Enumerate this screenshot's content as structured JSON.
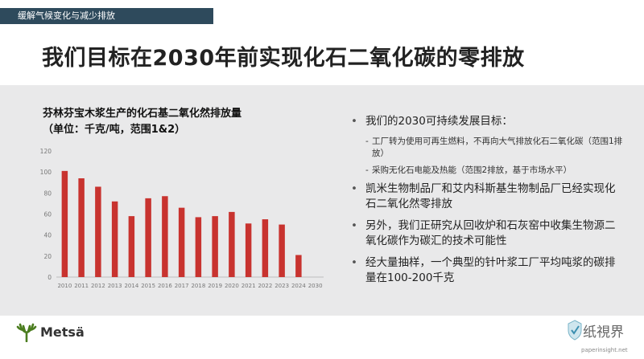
{
  "header": {
    "section_label": "缓解气候变化与减少排放"
  },
  "page_title": "我们目标在2030年前实现化石二氧化碳的零排放",
  "chart_data": {
    "type": "bar",
    "title_line1": "芬林芬宝木浆生产的化石基二氧化然排放量",
    "title_line2": "（单位：千克/吨，范围1&2）",
    "categories": [
      "2010",
      "2011",
      "2012",
      "2013",
      "2014",
      "2015",
      "2016",
      "2017",
      "2018",
      "2019",
      "2020",
      "2021",
      "2022",
      "2023",
      "2024",
      "2030"
    ],
    "values": [
      101,
      94,
      86,
      72,
      58,
      75,
      77,
      66,
      57,
      58,
      62,
      51,
      55,
      50,
      21,
      null
    ],
    "ylim": [
      0,
      120
    ],
    "yticks": [
      "0",
      "20",
      "40",
      "60",
      "80",
      "100",
      "120"
    ],
    "bar_color": "#c8332f",
    "grid": false
  },
  "bullets": [
    {
      "text": "我们的2030可持续发展目标：",
      "subs": [
        "工厂转为使用可再生燃料，不再向大气排放化石二氧化碳（范围1排放）",
        "采购无化石电能及热能（范围2排放，基于市场水平）"
      ]
    },
    {
      "text": "凯米生物制品厂和艾内科斯基生物制品厂已经实现化石二氧化然零排放",
      "subs": []
    },
    {
      "text": "另外，我们正研究从回收炉和石灰窑中收集生物源二氧化碳作为碳汇的技术可能性",
      "subs": []
    },
    {
      "text": "经大量抽样，一个典型的针叶浆工厂平均吨浆的碳排量在100-200千克",
      "subs": []
    }
  ],
  "footer": {
    "logo_text": "Metsä",
    "logo_color": "#4b7d1f",
    "watermark_text": "纸視界",
    "watermark_url": "paperinsight.net"
  }
}
